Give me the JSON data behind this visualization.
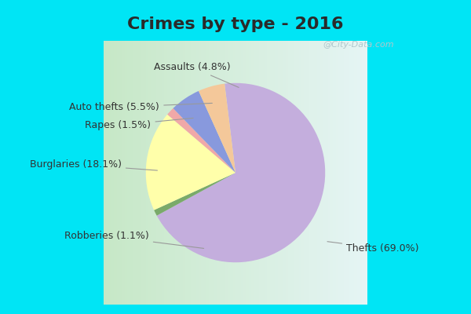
{
  "title": "Crimes by type - 2016",
  "slices": [
    {
      "label": "Thefts (69.0%)",
      "pct": 69.0,
      "color": "#c4aedd"
    },
    {
      "label": "Robberies (1.1%)",
      "pct": 1.1,
      "color": "#7aaa6a"
    },
    {
      "label": "Burglaries (18.1%)",
      "pct": 18.1,
      "color": "#ffffaa"
    },
    {
      "label": "Rapes (1.5%)",
      "pct": 1.5,
      "color": "#f0a8a8"
    },
    {
      "label": "Auto thefts (5.5%)",
      "pct": 5.5,
      "color": "#8899dd"
    },
    {
      "label": "Assaults (4.8%)",
      "pct": 4.8,
      "color": "#f4c89a"
    }
  ],
  "startangle": 97,
  "counterclock": false,
  "title_fontsize": 16,
  "label_fontsize": 9,
  "background_cyan": "#00e5f5",
  "background_grad_left": "#c8e8c8",
  "background_grad_right": "#e8f4f4",
  "watermark": "@City-Data.com",
  "watermark_color": "#b0c8cc"
}
